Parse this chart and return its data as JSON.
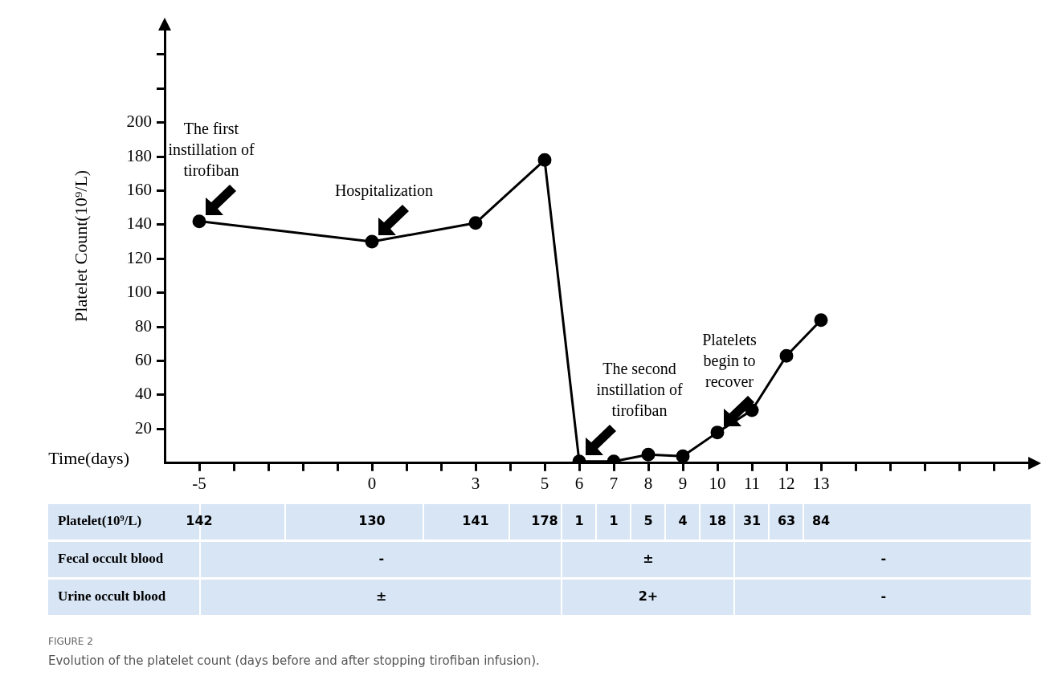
{
  "chart_data": {
    "type": "line",
    "xlabel": "Time(days)",
    "ylabel": "Platelet Count(10⁹/L)",
    "x": [
      -5,
      0,
      3,
      5,
      6,
      7,
      8,
      9,
      10,
      11,
      12,
      13
    ],
    "values": [
      142,
      130,
      141,
      178,
      1,
      1,
      5,
      4,
      18,
      31,
      63,
      84
    ],
    "color": "#000000",
    "marker": "circle",
    "line_style": "solid",
    "xlim": [
      -6,
      19
    ],
    "xticks": [
      -5,
      {
        "value": -4,
        "label": null
      },
      {
        "value": -3,
        "label": null
      },
      {
        "value": -2,
        "label": null
      },
      {
        "value": -1,
        "label": null
      },
      0,
      {
        "value": 1,
        "label": null
      },
      {
        "value": 2,
        "label": null
      },
      3,
      {
        "value": 4,
        "label": null
      },
      5,
      6,
      7,
      8,
      9,
      10,
      11,
      12,
      13,
      {
        "value": 14,
        "label": null
      },
      {
        "value": 15,
        "label": null
      },
      {
        "value": 16,
        "label": null
      },
      {
        "value": 17,
        "label": null
      },
      {
        "value": 18,
        "label": null
      }
    ],
    "ylim": [
      0,
      255
    ],
    "yticks": [
      20,
      40,
      60,
      80,
      100,
      120,
      140,
      160,
      180,
      200,
      {
        "value": 220,
        "label": null
      },
      {
        "value": 240,
        "label": null
      }
    ],
    "annotations": [
      {
        "text": "The first instillation of tirofiban",
        "x": -5,
        "y": 142
      },
      {
        "text": "Hospitalization",
        "x": 0,
        "y": 130
      },
      {
        "text": "The second instillation of tirofiban",
        "x": 6,
        "y": 1
      },
      {
        "text": "Platelets begin to recover",
        "x": 10,
        "y": 18
      },
      "Platelet(10⁹/L)",
      "142",
      "130",
      "141",
      "178",
      "1",
      "1",
      "5",
      "4",
      "18",
      "31",
      "63",
      "84",
      "Fecal occult blood",
      "-",
      "±",
      "-",
      "Urine occult blood",
      "±",
      "2+",
      "-",
      "FIGURE 2",
      "Evolution of the platelet count (days before and after stopping tirofiban infusion)."
    ]
  }
}
